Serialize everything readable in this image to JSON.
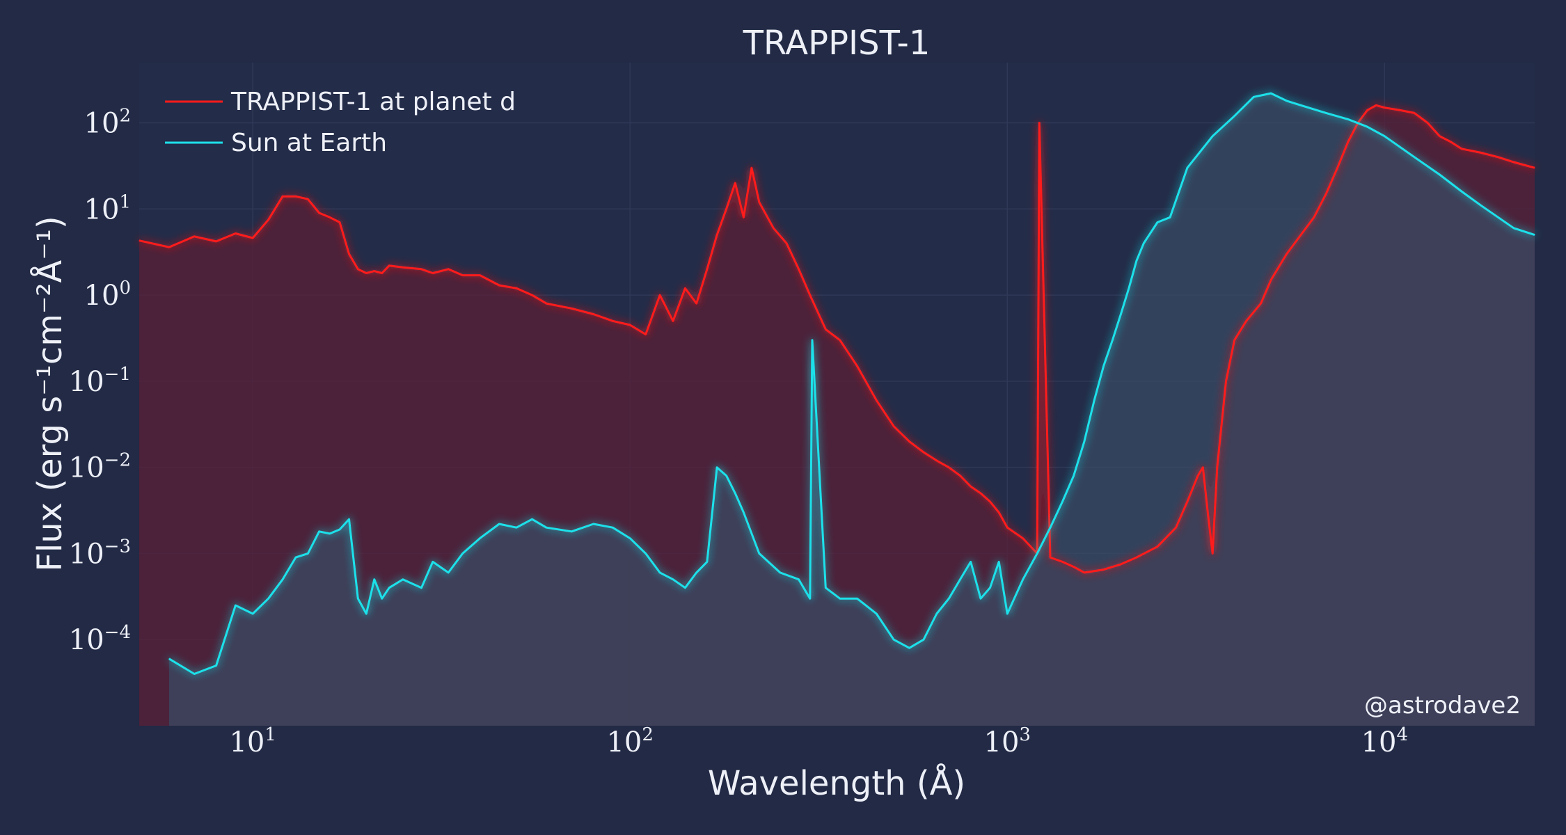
{
  "chart_data": {
    "type": "line",
    "title": "TRAPPIST-1",
    "xlabel": "Wavelength (Å)",
    "ylabel": "Flux (erg s⁻¹cm⁻²Å⁻¹)",
    "x_scale": "log",
    "y_scale": "log",
    "xlim": [
      5,
      25000
    ],
    "ylim": [
      1e-05,
      500
    ],
    "x_ticks": [
      {
        "value": 10,
        "base": "10",
        "exp": "1"
      },
      {
        "value": 100,
        "base": "10",
        "exp": "2"
      },
      {
        "value": 1000,
        "base": "10",
        "exp": "3"
      },
      {
        "value": 10000,
        "base": "10",
        "exp": "4"
      }
    ],
    "y_ticks": [
      {
        "value": 0.0001,
        "base": "10",
        "exp": "−4"
      },
      {
        "value": 0.001,
        "base": "10",
        "exp": "−3"
      },
      {
        "value": 0.01,
        "base": "10",
        "exp": "−2"
      },
      {
        "value": 0.1,
        "base": "10",
        "exp": "−1"
      },
      {
        "value": 1,
        "base": "10",
        "exp": "0"
      },
      {
        "value": 10,
        "base": "10",
        "exp": "1"
      },
      {
        "value": 100,
        "base": "10",
        "exp": "2"
      }
    ],
    "grid": true,
    "legend_position": "top-left",
    "credit": "@astrodave2",
    "colors": {
      "background": "#222a45",
      "plot_area": "#232c48",
      "grid": "#2f3957",
      "text": "#eef0f8"
    },
    "series": [
      {
        "name": "TRAPPIST-1 at planet d",
        "color": "#ff1a1a",
        "fill": "#5a1f35",
        "x": [
          5,
          6,
          7,
          8,
          9,
          10,
          11,
          12,
          13,
          14,
          15,
          16,
          17,
          18,
          19,
          20,
          21,
          22,
          23,
          25,
          28,
          30,
          33,
          36,
          40,
          45,
          50,
          55,
          60,
          70,
          80,
          90,
          100,
          110,
          120,
          130,
          140,
          150,
          160,
          170,
          180,
          190,
          200,
          210,
          220,
          240,
          260,
          280,
          300,
          330,
          360,
          400,
          450,
          500,
          550,
          600,
          650,
          700,
          750,
          800,
          850,
          900,
          950,
          1000,
          1100,
          1200,
          1216,
          1300,
          1400,
          1500,
          1600,
          1800,
          2000,
          2200,
          2500,
          2800,
          3000,
          3200,
          3300,
          3400,
          3500,
          3600,
          3800,
          4000,
          4300,
          4700,
          5000,
          5500,
          6000,
          6500,
          7000,
          7500,
          8000,
          8500,
          9000,
          9500,
          10000,
          11000,
          12000,
          13000,
          14000,
          15000,
          16000,
          18000,
          20000,
          22000,
          25000
        ],
        "y": [
          4.3,
          3.6,
          4.8,
          4.2,
          5.2,
          4.6,
          7.5,
          14,
          14,
          13,
          9,
          8,
          7,
          3,
          2,
          1.8,
          1.9,
          1.8,
          2.2,
          2.1,
          2.0,
          1.8,
          2.0,
          1.7,
          1.7,
          1.3,
          1.2,
          1.0,
          0.8,
          0.7,
          0.6,
          0.5,
          0.45,
          0.35,
          1.0,
          0.5,
          1.2,
          0.8,
          2,
          5,
          10,
          20,
          8,
          30,
          12,
          6,
          4,
          2,
          1,
          0.4,
          0.3,
          0.15,
          0.06,
          0.03,
          0.02,
          0.015,
          0.012,
          0.01,
          0.008,
          0.006,
          0.005,
          0.004,
          0.003,
          0.002,
          0.0015,
          0.001,
          100,
          0.0009,
          0.0008,
          0.0007,
          0.0006,
          0.00065,
          0.00075,
          0.0009,
          0.0012,
          0.002,
          0.004,
          0.008,
          0.01,
          0.003,
          0.001,
          0.01,
          0.1,
          0.3,
          0.5,
          0.8,
          1.5,
          3,
          5,
          8,
          15,
          30,
          60,
          100,
          140,
          160,
          150,
          140,
          130,
          100,
          70,
          60,
          50,
          45,
          40,
          35,
          30
        ]
      },
      {
        "name": "Sun at Earth",
        "color": "#1de1ea",
        "fill": "#3a4a63",
        "x": [
          6,
          7,
          8,
          9,
          10,
          11,
          12,
          13,
          14,
          15,
          16,
          17,
          18,
          19,
          20,
          21,
          22,
          23,
          25,
          28,
          30,
          33,
          36,
          40,
          45,
          50,
          55,
          60,
          70,
          80,
          90,
          100,
          110,
          120,
          130,
          140,
          150,
          160,
          170,
          180,
          190,
          200,
          220,
          250,
          280,
          300,
          304,
          330,
          360,
          400,
          450,
          500,
          550,
          600,
          650,
          700,
          750,
          800,
          850,
          900,
          950,
          1000,
          1100,
          1200,
          1300,
          1400,
          1500,
          1600,
          1700,
          1800,
          1900,
          2000,
          2100,
          2200,
          2300,
          2500,
          2700,
          3000,
          3500,
          4000,
          4500,
          5000,
          5500,
          6000,
          7000,
          8000,
          9000,
          10000,
          12000,
          14000,
          16000,
          18000,
          20000,
          22000,
          25000
        ],
        "y": [
          6e-05,
          4e-05,
          5e-05,
          0.00025,
          0.0002,
          0.0003,
          0.0005,
          0.0009,
          0.001,
          0.0018,
          0.0017,
          0.0019,
          0.0025,
          0.0003,
          0.0002,
          0.0005,
          0.0003,
          0.0004,
          0.0005,
          0.0004,
          0.0008,
          0.0006,
          0.001,
          0.0015,
          0.0022,
          0.002,
          0.0025,
          0.002,
          0.0018,
          0.0022,
          0.002,
          0.0015,
          0.001,
          0.0006,
          0.0005,
          0.0004,
          0.0006,
          0.0008,
          0.01,
          0.008,
          0.005,
          0.003,
          0.001,
          0.0006,
          0.0005,
          0.0003,
          0.3,
          0.0004,
          0.0003,
          0.0003,
          0.0002,
          0.0001,
          8e-05,
          0.0001,
          0.0002,
          0.0003,
          0.0005,
          0.0008,
          0.0003,
          0.0004,
          0.0008,
          0.0002,
          0.0005,
          0.001,
          0.002,
          0.004,
          0.008,
          0.02,
          0.06,
          0.15,
          0.3,
          0.6,
          1.2,
          2.5,
          4,
          7,
          8,
          30,
          70,
          120,
          200,
          220,
          180,
          160,
          130,
          110,
          90,
          70,
          40,
          25,
          16,
          11,
          8,
          6,
          5
        ]
      }
    ]
  }
}
